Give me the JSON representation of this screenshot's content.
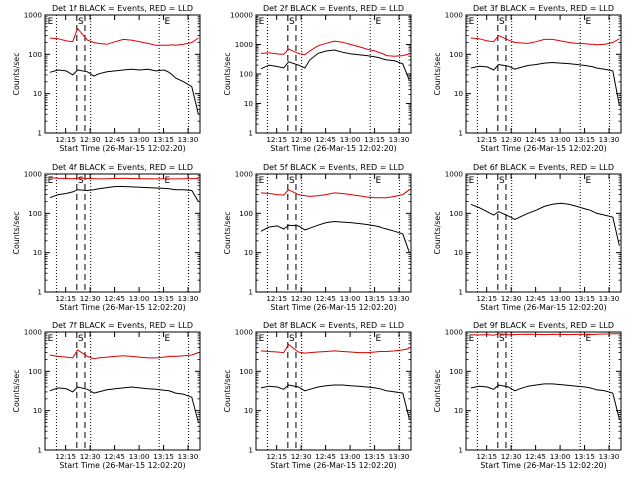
{
  "figure": {
    "x_tick_labels": [
      "12:15",
      "12:30",
      "12:45",
      "13:00",
      "13:15",
      "13:30"
    ],
    "y_tick_labels": [
      "1",
      "10",
      "100",
      "1000"
    ],
    "ylabel": "Counts/sec",
    "xlabel": "Start Time (26-Mar-15 12:02:20)",
    "marker_labels": [
      "S",
      "E"
    ]
  },
  "colors": {
    "events": "#000000",
    "lld": "#dd0000",
    "axes": "#000000",
    "background": "#ffffff"
  },
  "chart_data": [
    {
      "type": "line",
      "title": "Det 1f BLACK = Events, RED = LLD",
      "xlabel": "Start Time (26-Mar-15 12:02:20)",
      "ylabel": "Counts/sec",
      "yscale": "log",
      "ylim": [
        1,
        1000
      ],
      "x_unit": "minutes after 12:02:20",
      "xlim": [
        0,
        95
      ],
      "grid": false,
      "x": [
        3,
        8,
        13,
        17,
        20,
        26,
        30,
        33,
        38,
        43,
        48,
        53,
        58,
        63,
        68,
        73,
        76,
        78,
        80,
        85,
        90,
        94
      ],
      "series": [
        {
          "name": "Events",
          "values": [
            35,
            40,
            38,
            30,
            40,
            36,
            28,
            32,
            36,
            38,
            40,
            42,
            40,
            42,
            38,
            40,
            35,
            30,
            25,
            20,
            15,
            3
          ]
        },
        {
          "name": "LLD",
          "values": [
            260,
            250,
            220,
            210,
            450,
            230,
            200,
            190,
            180,
            210,
            240,
            230,
            210,
            190,
            170,
            170,
            170,
            175,
            170,
            180,
            200,
            260
          ]
        }
      ]
    },
    {
      "type": "line",
      "title": "Det 2f BLACK = Events, RED = LLD",
      "xlabel": "Start Time (26-Mar-15 12:02:20)",
      "ylabel": "Counts/sec",
      "yscale": "log",
      "ylim": [
        1,
        10000
      ],
      "x_unit": "minutes after 12:02:20",
      "xlim": [
        0,
        95
      ],
      "grid": false,
      "x": [
        3,
        8,
        13,
        17,
        20,
        26,
        30,
        33,
        38,
        43,
        48,
        53,
        58,
        63,
        68,
        73,
        76,
        78,
        80,
        85,
        90,
        94
      ],
      "series": [
        {
          "name": "Events",
          "values": [
            150,
            200,
            180,
            160,
            260,
            200,
            160,
            300,
            500,
            600,
            650,
            550,
            480,
            450,
            420,
            380,
            350,
            320,
            300,
            280,
            220,
            60
          ]
        },
        {
          "name": "LLD",
          "values": [
            500,
            520,
            480,
            460,
            700,
            500,
            450,
            600,
            900,
            1100,
            1300,
            1200,
            1000,
            850,
            700,
            600,
            520,
            480,
            420,
            400,
            420,
            480
          ]
        }
      ]
    },
    {
      "type": "line",
      "title": "Det 3f BLACK = Events, RED = LLD",
      "xlabel": "Start Time (26-Mar-15 12:02:20)",
      "ylabel": "Counts/sec",
      "yscale": "log",
      "ylim": [
        1,
        1000
      ],
      "x_unit": "minutes after 12:02:20",
      "xlim": [
        0,
        95
      ],
      "grid": false,
      "x": [
        3,
        8,
        13,
        17,
        20,
        26,
        30,
        33,
        38,
        43,
        48,
        53,
        58,
        63,
        68,
        73,
        76,
        78,
        80,
        85,
        90,
        94
      ],
      "series": [
        {
          "name": "Events",
          "values": [
            45,
            50,
            48,
            40,
            55,
            50,
            42,
            46,
            52,
            55,
            60,
            62,
            60,
            58,
            55,
            52,
            50,
            48,
            45,
            42,
            38,
            5
          ]
        },
        {
          "name": "LLD",
          "values": [
            260,
            250,
            220,
            210,
            300,
            230,
            200,
            195,
            190,
            210,
            240,
            240,
            220,
            200,
            190,
            185,
            180,
            180,
            175,
            180,
            200,
            250
          ]
        }
      ]
    },
    {
      "type": "line",
      "title": "Det 4f BLACK = Events, RED = LLD",
      "xlabel": "Start Time (26-Mar-15 12:02:20)",
      "ylabel": "Counts/sec",
      "yscale": "log",
      "ylim": [
        1,
        1000
      ],
      "x_unit": "minutes after 12:02:20",
      "xlim": [
        0,
        95
      ],
      "grid": false,
      "x": [
        3,
        8,
        13,
        17,
        20,
        26,
        30,
        33,
        38,
        43,
        48,
        53,
        58,
        63,
        68,
        73,
        76,
        78,
        80,
        85,
        90,
        94
      ],
      "series": [
        {
          "name": "Events",
          "values": [
            250,
            300,
            320,
            350,
            400,
            380,
            400,
            420,
            450,
            480,
            480,
            470,
            460,
            450,
            440,
            430,
            420,
            410,
            400,
            400,
            380,
            200
          ]
        },
        {
          "name": "LLD",
          "values": [
            800,
            780,
            770,
            760,
            790,
            770,
            760,
            750,
            760,
            770,
            780,
            770,
            760,
            760,
            750,
            750,
            750,
            750,
            750,
            755,
            760,
            770
          ]
        }
      ]
    },
    {
      "type": "line",
      "title": "Det 5f BLACK = Events, RED = LLD",
      "xlabel": "Start Time (26-Mar-15 12:02:20)",
      "ylabel": "Counts/sec",
      "yscale": "log",
      "ylim": [
        1,
        1000
      ],
      "x_unit": "minutes after 12:02:20",
      "xlim": [
        0,
        95
      ],
      "grid": false,
      "x": [
        3,
        8,
        13,
        17,
        20,
        26,
        30,
        33,
        38,
        43,
        48,
        53,
        58,
        63,
        68,
        73,
        76,
        78,
        80,
        85,
        90,
        94
      ],
      "series": [
        {
          "name": "Events",
          "values": [
            35,
            45,
            48,
            40,
            50,
            48,
            38,
            42,
            50,
            58,
            62,
            60,
            58,
            55,
            52,
            48,
            45,
            42,
            40,
            35,
            30,
            10
          ]
        },
        {
          "name": "LLD",
          "values": [
            330,
            320,
            300,
            290,
            400,
            300,
            280,
            270,
            280,
            300,
            330,
            320,
            300,
            280,
            260,
            250,
            250,
            250,
            250,
            270,
            300,
            400
          ]
        }
      ]
    },
    {
      "type": "line",
      "title": "Det 6f BLACK = Events, RED = LLD",
      "xlabel": "Start Time (26-Mar-15 12:02:20)",
      "ylabel": "Counts/sec",
      "yscale": "log",
      "ylim": [
        1,
        1000
      ],
      "x_unit": "minutes after 12:02:20",
      "xlim": [
        0,
        95
      ],
      "grid": false,
      "x": [
        3,
        8,
        13,
        17,
        20,
        26,
        30,
        33,
        38,
        43,
        48,
        53,
        58,
        63,
        68,
        73,
        76,
        78,
        80,
        85,
        90,
        94
      ],
      "series": [
        {
          "name": "Events",
          "values": [
            170,
            140,
            110,
            90,
            110,
            85,
            70,
            80,
            100,
            120,
            150,
            170,
            180,
            170,
            150,
            130,
            120,
            110,
            100,
            90,
            80,
            15
          ]
        }
      ]
    },
    {
      "type": "line",
      "title": "Det 7f BLACK = Events, RED = LLD",
      "xlabel": "Start Time (26-Mar-15 12:02:20)",
      "ylabel": "Counts/sec",
      "yscale": "log",
      "ylim": [
        1,
        1000
      ],
      "x_unit": "minutes after 12:02:20",
      "xlim": [
        0,
        95
      ],
      "grid": false,
      "x": [
        3,
        8,
        13,
        17,
        20,
        26,
        30,
        33,
        38,
        43,
        48,
        53,
        58,
        63,
        68,
        73,
        76,
        78,
        80,
        85,
        90,
        94
      ],
      "series": [
        {
          "name": "Events",
          "values": [
            32,
            38,
            36,
            30,
            40,
            35,
            28,
            30,
            34,
            36,
            38,
            40,
            38,
            36,
            35,
            33,
            32,
            30,
            28,
            26,
            22,
            5
          ]
        },
        {
          "name": "LLD",
          "values": [
            260,
            240,
            230,
            220,
            350,
            240,
            210,
            220,
            230,
            240,
            250,
            240,
            230,
            220,
            220,
            230,
            240,
            240,
            240,
            250,
            260,
            300
          ]
        }
      ]
    },
    {
      "type": "line",
      "title": "Det 8f BLACK = Events, RED = LLD",
      "xlabel": "Start Time (26-Mar-15 12:02:20)",
      "ylabel": "Counts/sec",
      "yscale": "log",
      "ylim": [
        1,
        1000
      ],
      "x_unit": "minutes after 12:02:20",
      "xlim": [
        0,
        95
      ],
      "grid": false,
      "x": [
        3,
        8,
        13,
        17,
        20,
        26,
        30,
        33,
        38,
        43,
        48,
        53,
        58,
        63,
        68,
        73,
        76,
        78,
        80,
        85,
        90,
        94
      ],
      "series": [
        {
          "name": "Events",
          "values": [
            38,
            42,
            40,
            35,
            45,
            40,
            32,
            35,
            40,
            43,
            45,
            45,
            43,
            42,
            40,
            38,
            36,
            34,
            32,
            30,
            28,
            6
          ]
        },
        {
          "name": "LLD",
          "values": [
            330,
            320,
            310,
            300,
            480,
            310,
            290,
            300,
            310,
            320,
            330,
            320,
            310,
            300,
            300,
            310,
            320,
            320,
            320,
            330,
            350,
            380
          ]
        }
      ]
    },
    {
      "type": "line",
      "title": "Det 9f BLACK = Events, RED = LLD",
      "xlabel": "Start Time (26-Mar-15 12:02:20)",
      "ylabel": "Counts/sec",
      "yscale": "log",
      "ylim": [
        1,
        1000
      ],
      "x_unit": "minutes after 12:02:20",
      "xlim": [
        0,
        95
      ],
      "grid": false,
      "x": [
        3,
        8,
        13,
        17,
        20,
        26,
        30,
        33,
        38,
        43,
        48,
        53,
        58,
        63,
        68,
        73,
        76,
        78,
        80,
        85,
        90,
        94
      ],
      "series": [
        {
          "name": "Events",
          "values": [
            38,
            42,
            40,
            35,
            45,
            40,
            32,
            36,
            42,
            45,
            48,
            48,
            46,
            44,
            42,
            40,
            38,
            36,
            34,
            32,
            28,
            6
          ]
        },
        {
          "name": "LLD",
          "values": [
            850,
            840,
            860,
            830,
            900,
            850,
            860,
            870,
            880,
            870,
            860,
            880,
            870,
            860,
            870,
            880,
            870,
            860,
            880,
            890,
            900,
            900
          ]
        }
      ]
    }
  ],
  "annotations": {
    "dotted_lines_x": [
      7,
      28,
      70,
      88
    ],
    "dashed_lines_x": [
      19.5,
      24.5
    ],
    "marker_S_x": 22,
    "marker_E_left_x": 1,
    "marker_E_right_x": 75
  }
}
